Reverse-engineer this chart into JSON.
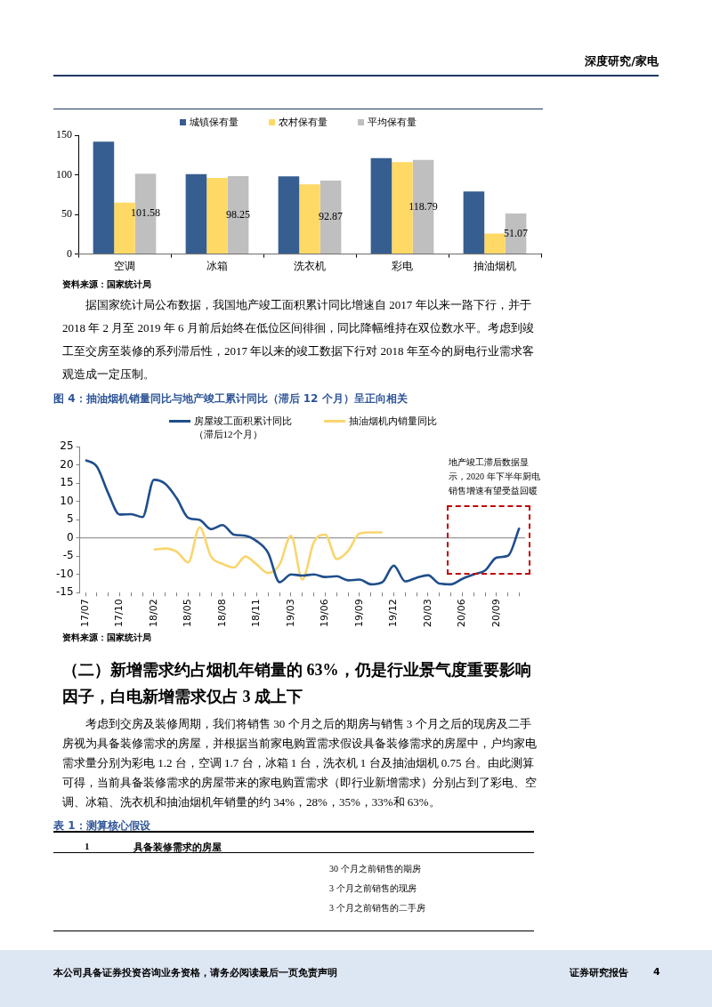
{
  "chart_data": [
    {
      "type": "bar",
      "categories": [
        "空调",
        "冰箱",
        "洗衣机",
        "彩电",
        "抽油烟机"
      ],
      "series": [
        {
          "name": "城镇保有量",
          "color": "#365e91",
          "values": [
            142,
            101,
            98,
            121,
            79
          ]
        },
        {
          "name": "农村保有量",
          "color": "#ffd966",
          "values": [
            65,
            96,
            88,
            116,
            26
          ]
        },
        {
          "name": "平均保有量",
          "color": "#bfbfbf",
          "values": [
            101.58,
            98.25,
            92.87,
            118.79,
            51.07
          ],
          "value_labels": [
            "101.58",
            "98.25",
            "92.87",
            "118.79",
            "51.07"
          ]
        }
      ],
      "ylim": [
        0,
        150
      ],
      "yticks": [
        0,
        50,
        100,
        150
      ],
      "legend": "top",
      "annotations": [
        "深度研究/家电",
        "资料来源：国家统计局",
        "据国家统计局公布数据，我国地产竣工面积累计同比增速自 2017 年以来一路下行，并于 2018 年 2 月至 2019 年 6 月前后始终在低位区间徘徊，同比降幅维持在双位数水平。考虑到竣工至交房至装修的系列滞后性，2017 年以来的竣工数据下行对 2018 年至今的厨电行业需求客观造成一定压制。"
      ]
    },
    {
      "type": "line",
      "title": "图 4：抽油烟机销量同比与地产竣工累计同比（滞后 12 个月）呈正向相关",
      "categories": [
        "17/07",
        null,
        null,
        "17/10",
        null,
        null,
        "18/02",
        null,
        null,
        "18/05",
        null,
        null,
        "18/08",
        null,
        null,
        "18/11",
        null,
        null,
        "19/03",
        null,
        null,
        "19/06",
        null,
        null,
        "19/09",
        null,
        null,
        "19/12",
        null,
        null,
        "20/03",
        null,
        null,
        "20/06",
        null,
        null,
        "20/09",
        null,
        null
      ],
      "series": [
        {
          "name": "房屋竣工面积累计同比（滞后12个月）",
          "color": "#1f4e8c",
          "values": [
            21.3,
            19.5,
            12.2,
            6.4,
            6.5,
            5.7,
            15.9,
            14.8,
            10.8,
            5.5,
            4.9,
            2.4,
            3.5,
            0.9,
            0.6,
            -0.9,
            -4.1,
            -12.1,
            -10.0,
            -10.3,
            -10.0,
            -10.7,
            -10.5,
            -11.6,
            -11.4,
            -12.7,
            -12.1,
            -7.6,
            -11.9,
            -10.9,
            -10.2,
            -12.5,
            -12.7,
            -11.2,
            -10.0,
            -8.9,
            -5.4,
            -4.9,
            2.8
          ]
        },
        {
          "name": "抽油烟机内销量同比",
          "color": "#f9d56e",
          "values": [
            null,
            null,
            null,
            null,
            null,
            null,
            -3.2,
            -2.9,
            -3.8,
            -6.7,
            2.9,
            -5.1,
            -7.1,
            -8.1,
            -5.1,
            -7.3,
            -9.6,
            -7.3,
            0.6,
            -11.4,
            -1.2,
            0.9,
            -5.8,
            -3.6,
            1.2,
            1.5,
            1.5,
            null,
            null,
            null,
            null,
            null,
            null,
            null,
            null,
            null,
            null,
            null,
            null
          ]
        }
      ],
      "ylim": [
        -15,
        25
      ],
      "yticks": [
        -15,
        -10,
        -5,
        0,
        5,
        10,
        15,
        20,
        25
      ],
      "legend": "top",
      "annotations": [
        "地产竣工滞后数据显示，2020 年下半年厨电销售增速有望受益回暖",
        "资料来源：国家统计局",
        "（二）新增需求约占烟机年销量的 63%，仍是行业景气度重要影响因子，白电新增需求仅占 3 成上下",
        "考虑到交房及装修周期，我们将销售 30 个月之后的期房与销售 3 个月之后的现房及二手房视为具备装修需求的房屋，并根据当前家电购置需求假设具备装修需求的房屋中，户均家电需求量分别为彩电 1.2 台，空调 1.7 台，冰箱 1 台，洗衣机 1 台及抽油烟机 0.75 台。由此测算可得，当前具备装修需求的房屋带来的家电购置需求（即行业新增需求）分别占到了彩电、空调、冰箱、洗衣机和抽油烟机年销量的约 34%，28%，35%，33%和 63%。"
      ]
    },
    {
      "type": "other",
      "title": "表 1：测算核心假设",
      "annotations": [
        "1",
        "具备装修需求的房屋",
        "30 个月之前销售的期房",
        "3 个月之前销售的现房",
        "3 个月之前销售的二手房",
        "本公司具备证券投资咨询业务资格，请务必阅读最后一页免责声明",
        "证券研究报告",
        "4"
      ]
    }
  ]
}
